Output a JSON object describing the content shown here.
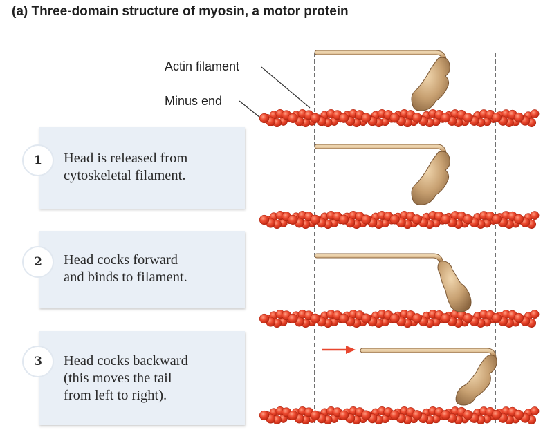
{
  "title": "(a) Three-domain structure of myosin, a motor protein",
  "labels": {
    "actin_filament": "Actin filament",
    "minus_end": "Minus end"
  },
  "steps": [
    {
      "number": "1",
      "lines": [
        "Head is released from",
        "cytoskeletal filament."
      ]
    },
    {
      "number": "2",
      "lines": [
        "Head cocks forward",
        "and binds to filament."
      ]
    },
    {
      "number": "3",
      "lines": [
        "Head cocks backward",
        "(this moves the tail",
        "from left to right)."
      ]
    }
  ],
  "colors": {
    "actin": "#e8462e",
    "actin_dark": "#c42a18",
    "actin_light": "#f58a6c",
    "myosin": "#c9a275",
    "myosin_dark": "#8f6a44",
    "myosin_light": "#e6c9a0",
    "arrow": "#e8462e",
    "box": "#e9eff6"
  }
}
